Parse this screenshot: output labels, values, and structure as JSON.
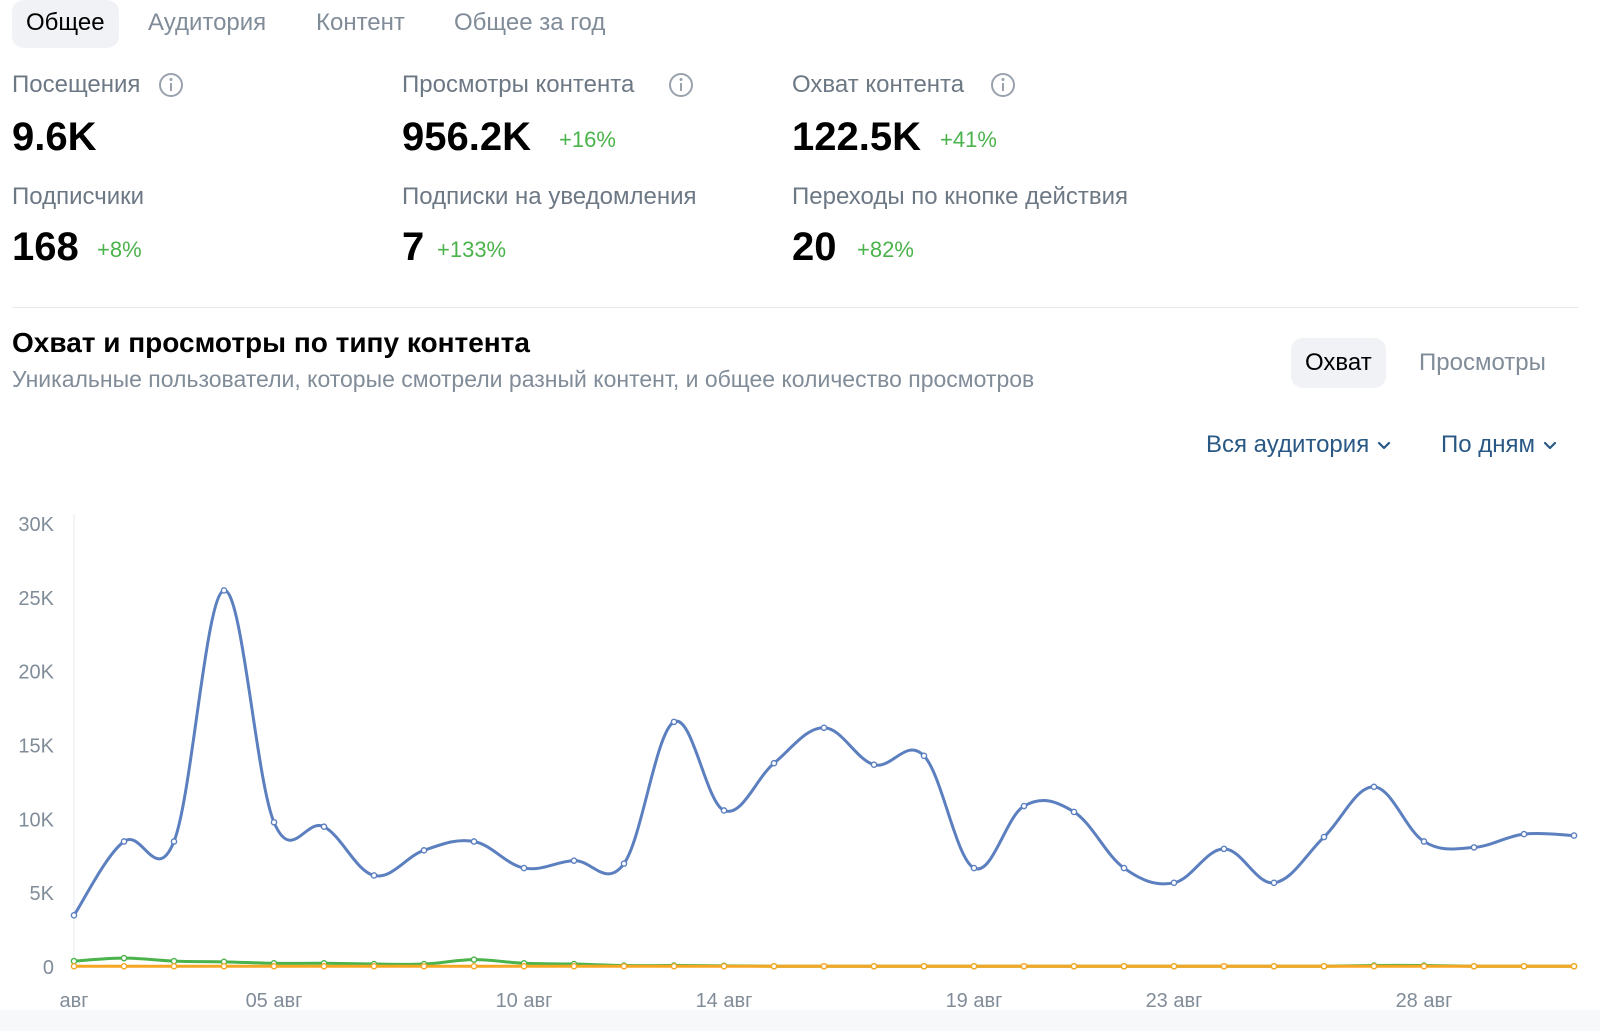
{
  "tabs": [
    {
      "label": "Общее",
      "active": true
    },
    {
      "label": "Аудитория",
      "active": false
    },
    {
      "label": "Контент",
      "active": false
    },
    {
      "label": "Общее за год",
      "active": false
    }
  ],
  "stats": {
    "visits": {
      "label": "Посещения",
      "value": "9.6K"
    },
    "content_views": {
      "label": "Просмотры контента",
      "value": "956.2K",
      "delta": "+16%"
    },
    "content_reach": {
      "label": "Охват контента",
      "value": "122.5K",
      "delta": "+41%"
    },
    "subscribers": {
      "label": "Подписчики",
      "value": "168",
      "delta": "+8%"
    },
    "notification_subs": {
      "label": "Подписки на уведомления",
      "value": "7",
      "delta": "+133%"
    },
    "action_button_clicks": {
      "label": "Переходы по кнопке действия",
      "value": "20",
      "delta": "+82%"
    }
  },
  "section": {
    "title": "Охват и просмотры по типу контента",
    "subtitle": "Уникальные пользователи, которые смотрели разный контент, и общее количество просмотров"
  },
  "segment": {
    "reach_label": "Охват",
    "views_label": "Просмотры",
    "active": "reach"
  },
  "filters": {
    "audience_label": "Вся аудитория",
    "period_label": "По дням"
  },
  "colors": {
    "accent_blue": "#2a5885",
    "positive_green": "#4bb34b",
    "series_blue": "#5b7fbf",
    "series_green": "#4bb34b",
    "series_orange": "#f5a623"
  },
  "chart_data": {
    "type": "line",
    "title": "",
    "xlabel": "",
    "ylabel": "",
    "ylim": [
      0,
      30000
    ],
    "yticks": [
      0,
      5000,
      10000,
      15000,
      20000,
      25000,
      30000
    ],
    "ytick_labels": [
      "0",
      "5K",
      "10K",
      "15K",
      "20K",
      "25K",
      "30K"
    ],
    "x": [
      1,
      2,
      3,
      4,
      5,
      6,
      7,
      8,
      9,
      10,
      11,
      12,
      13,
      14,
      15,
      16,
      17,
      18,
      19,
      20,
      21,
      22,
      23,
      24,
      25,
      26,
      27,
      28,
      29,
      30,
      31
    ],
    "xticks": [
      {
        "x": 1,
        "label": "авг"
      },
      {
        "x": 5,
        "label": "05 авг"
      },
      {
        "x": 10,
        "label": "10 авг"
      },
      {
        "x": 14,
        "label": "14 авг"
      },
      {
        "x": 19,
        "label": "19 авг"
      },
      {
        "x": 23,
        "label": "23 авг"
      },
      {
        "x": 28,
        "label": "28 авг"
      }
    ],
    "series": [
      {
        "name": "series-blue",
        "color": "#5b7fbf",
        "values": [
          3500,
          8500,
          8500,
          25500,
          9800,
          9500,
          6200,
          7900,
          8500,
          6700,
          7200,
          7000,
          16600,
          10600,
          13800,
          16200,
          13700,
          14300,
          6700,
          10900,
          10500,
          6700,
          5700,
          8000,
          5700,
          8800,
          12200,
          8500,
          8100,
          9000,
          8900
        ]
      },
      {
        "name": "series-green",
        "color": "#4bb34b",
        "values": [
          400,
          600,
          400,
          350,
          250,
          250,
          200,
          200,
          500,
          250,
          200,
          100,
          100,
          80,
          50,
          50,
          50,
          50,
          50,
          50,
          50,
          50,
          50,
          50,
          50,
          50,
          100,
          100,
          50,
          50,
          50
        ]
      },
      {
        "name": "series-orange",
        "color": "#f5a623",
        "values": [
          50,
          50,
          50,
          50,
          50,
          50,
          50,
          50,
          50,
          50,
          50,
          50,
          50,
          50,
          50,
          50,
          50,
          50,
          50,
          50,
          50,
          50,
          50,
          50,
          50,
          50,
          50,
          50,
          50,
          50,
          50
        ]
      }
    ],
    "grid": false
  }
}
